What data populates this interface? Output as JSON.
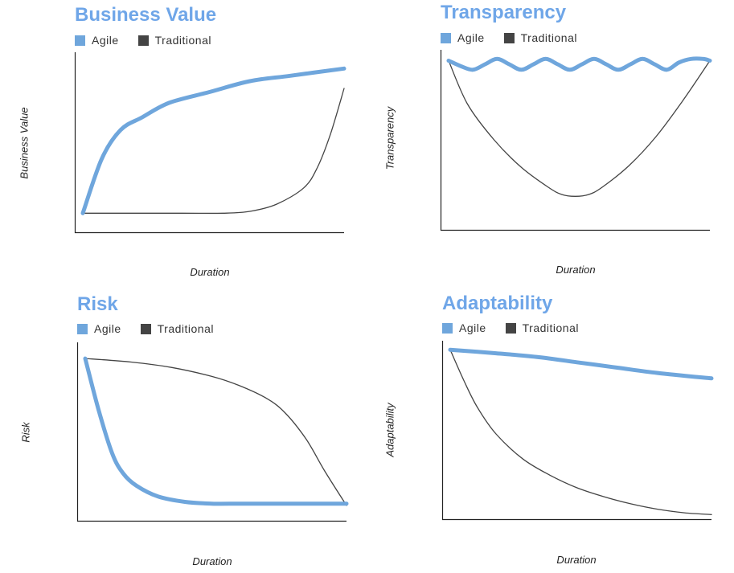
{
  "colors": {
    "agile": "#6fa6dc",
    "traditional": "#444444",
    "title": "#6fa6e8",
    "axis": "#222222"
  },
  "chart_data": [
    {
      "type": "line",
      "title": "Business Value",
      "xlabel": "Duration",
      "ylabel": "Business Value",
      "xlim": [
        0,
        100
      ],
      "ylim": [
        0,
        100
      ],
      "legend": "top-left",
      "series": [
        {
          "name": "Agile",
          "x": [
            3,
            10,
            17,
            25,
            35,
            50,
            65,
            80,
            100
          ],
          "y": [
            11,
            41,
            57,
            64,
            72,
            78,
            84,
            87,
            91
          ]
        },
        {
          "name": "Traditional",
          "x": [
            3,
            20,
            40,
            55,
            65,
            75,
            85,
            90,
            95,
            100
          ],
          "y": [
            11,
            11,
            11,
            11,
            12,
            16,
            25,
            36,
            55,
            80
          ]
        }
      ]
    },
    {
      "type": "line",
      "title": "Transparency",
      "xlabel": "Duration",
      "ylabel": "Transparency",
      "xlim": [
        0,
        100
      ],
      "ylim": [
        0,
        100
      ],
      "legend": "top-left",
      "series": [
        {
          "name": "Agile",
          "x": [
            3,
            7.5,
            12,
            16.5,
            21,
            25.5,
            30,
            34.5,
            39,
            43.5,
            48,
            52.5,
            57,
            61.5,
            66,
            70.5,
            75,
            79.5,
            84,
            88.5,
            93,
            97.5,
            100
          ],
          "y": [
            94,
            91,
            89,
            92,
            95,
            92,
            89,
            92,
            95,
            92,
            89,
            92,
            95,
            92,
            89,
            92,
            95,
            92,
            89,
            93,
            95,
            95,
            94
          ]
        },
        {
          "name": "Traditional",
          "x": [
            3,
            10,
            20,
            30,
            40,
            45,
            50,
            55,
            60,
            70,
            80,
            90,
            100
          ],
          "y": [
            94,
            70,
            50,
            35,
            24,
            20,
            19,
            20,
            24,
            36,
            52,
            72,
            94
          ]
        }
      ]
    },
    {
      "type": "line",
      "title": "Risk",
      "xlabel": "Duration",
      "ylabel": "Risk",
      "xlim": [
        0,
        100
      ],
      "ylim": [
        0,
        100
      ],
      "legend": "top-left",
      "series": [
        {
          "name": "Agile",
          "x": [
            3,
            8,
            13,
            17,
            22,
            30,
            40,
            50,
            60,
            70,
            80,
            90,
            100
          ],
          "y": [
            91,
            62,
            38,
            27,
            20,
            14,
            11,
            10,
            10,
            10,
            10,
            10,
            10
          ]
        },
        {
          "name": "Traditional",
          "x": [
            3,
            20,
            35,
            50,
            60,
            70,
            77,
            85,
            92,
            100
          ],
          "y": [
            91,
            89,
            86,
            81,
            76,
            69,
            61,
            46,
            28,
            9
          ]
        }
      ]
    },
    {
      "type": "line",
      "title": "Adaptability",
      "xlabel": "Duration",
      "ylabel": "Adaptability",
      "xlim": [
        0,
        100
      ],
      "ylim": [
        0,
        100
      ],
      "legend": "top-left",
      "series": [
        {
          "name": "Agile",
          "x": [
            3,
            20,
            35,
            50,
            65,
            80,
            100
          ],
          "y": [
            95,
            93,
            91,
            88,
            85,
            82,
            79
          ]
        },
        {
          "name": "Traditional",
          "x": [
            3,
            8,
            13,
            20,
            30,
            40,
            50,
            60,
            70,
            80,
            90,
            100
          ],
          "y": [
            95,
            78,
            63,
            48,
            34,
            25,
            18,
            13,
            9,
            6,
            4,
            3
          ]
        }
      ]
    }
  ]
}
